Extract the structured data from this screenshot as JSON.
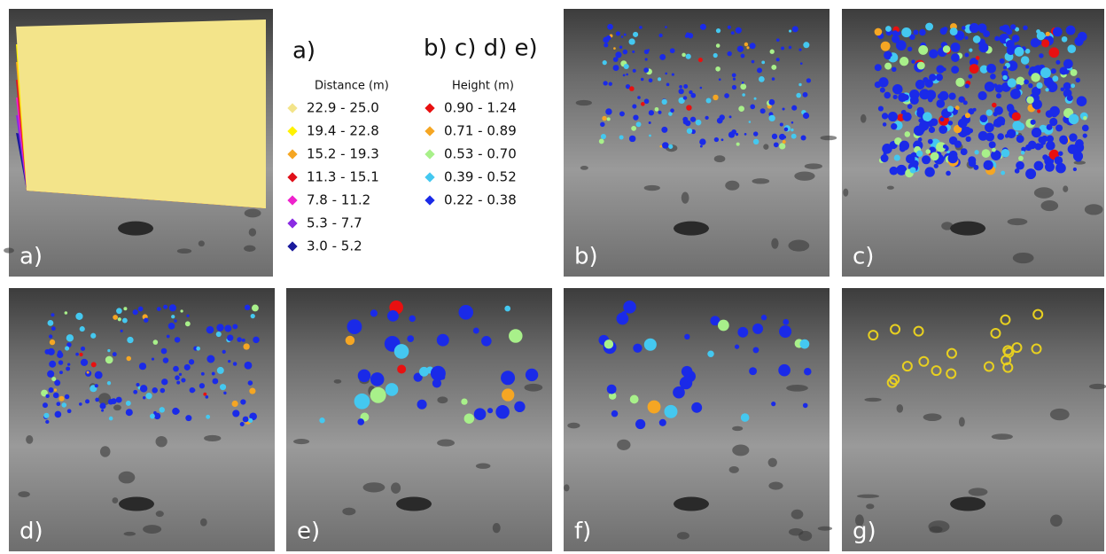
{
  "panels": [
    {
      "label": "a)"
    },
    {
      "label": "b)"
    },
    {
      "label": "c)"
    },
    {
      "label": "d)"
    },
    {
      "label": "e)"
    },
    {
      "label": "f)"
    },
    {
      "label": "g)"
    }
  ],
  "legend_distance": {
    "heading": "a)",
    "title": "Distance (m)",
    "items": [
      {
        "label": "22.9 - 25.0",
        "color": "#f3e48a"
      },
      {
        "label": "19.4 - 22.8",
        "color": "#fff200"
      },
      {
        "label": "15.2 - 19.3",
        "color": "#f5a623"
      },
      {
        "label": "11.3 - 15.1",
        "color": "#e0101a"
      },
      {
        "label": "7.8 - 11.2",
        "color": "#ee22cc"
      },
      {
        "label": "5.3 - 7.7",
        "color": "#8a2be2"
      },
      {
        "label": "3.0 - 5.2",
        "color": "#1a1a9c"
      }
    ]
  },
  "legend_height": {
    "heading": "b) c) d) e)",
    "title": "Height (m)",
    "items": [
      {
        "label": "0.90 - 1.24",
        "color": "#e81010"
      },
      {
        "label": "0.71 - 0.89",
        "color": "#f5a623"
      },
      {
        "label": "0.53 - 0.70",
        "color": "#a8f08a"
      },
      {
        "label": "0.39 - 0.52",
        "color": "#44c8f0"
      },
      {
        "label": "0.22 - 0.38",
        "color": "#1a2ae8"
      }
    ]
  }
}
